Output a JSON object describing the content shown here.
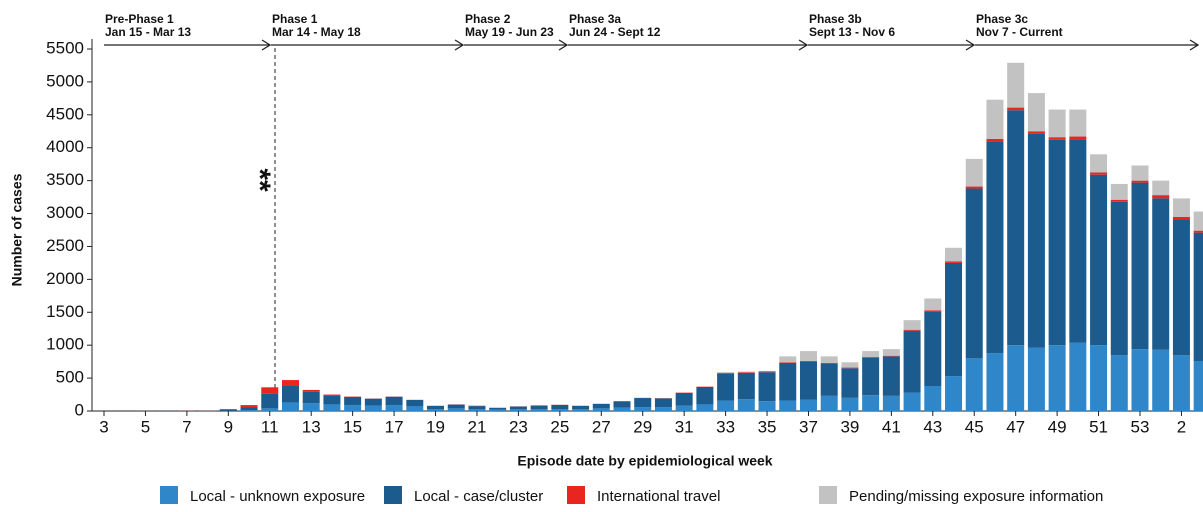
{
  "chart_data": {
    "type": "stacked-bar",
    "x_label": "Episode date by epidemiological week",
    "y_label": "Number of cases",
    "annotation": "**",
    "phases": [
      {
        "label": "Pre-Phase 1",
        "dates": "Jan 15 - Mar 13"
      },
      {
        "label": "Phase 1",
        "dates": "Mar 14 - May 18"
      },
      {
        "label": "Phase 2",
        "dates": "May 19 - Jun 23"
      },
      {
        "label": "Phase 3a",
        "dates": "Jun 24 - Sept 12"
      },
      {
        "label": "Phase 3b",
        "dates": "Sept 13 - Nov 6"
      },
      {
        "label": "Phase 3c",
        "dates": "Nov 7 - Current"
      }
    ],
    "categories": [
      "3",
      null,
      "5",
      null,
      "7",
      null,
      "9",
      null,
      "11",
      null,
      "13",
      null,
      "15",
      null,
      "17",
      null,
      "19",
      null,
      "21",
      null,
      "23",
      null,
      "25",
      null,
      "27",
      null,
      "29",
      null,
      "31",
      null,
      "33",
      null,
      "35",
      null,
      "37",
      null,
      "39",
      null,
      "41",
      null,
      "43",
      null,
      "45",
      null,
      "47",
      null,
      "49",
      null,
      "51",
      null,
      "53",
      null,
      "2",
      null
    ],
    "series": [
      {
        "name": "Local - unknown exposure",
        "color": "#2f87c9",
        "values": [
          0,
          0,
          0,
          0,
          0,
          0,
          5,
          10,
          40,
          130,
          120,
          100,
          90,
          80,
          90,
          70,
          30,
          40,
          30,
          20,
          30,
          30,
          30,
          30,
          40,
          50,
          60,
          60,
          80,
          100,
          160,
          180,
          150,
          160,
          170,
          230,
          200,
          240,
          230,
          280,
          380,
          530,
          800,
          880,
          1000,
          960,
          1000,
          1040,
          1000,
          850,
          940,
          930,
          850,
          760
        ]
      },
      {
        "name": "Local - case/cluster",
        "color": "#1b5b8e",
        "values": [
          0,
          0,
          2,
          2,
          2,
          3,
          15,
          50,
          220,
          250,
          170,
          140,
          125,
          108,
          128,
          98,
          48,
          58,
          45,
          28,
          38,
          53,
          63,
          48,
          68,
          97,
          137,
          132,
          195,
          265,
          405,
          400,
          440,
          570,
          580,
          490,
          450,
          570,
          600,
          940,
          1130,
          1720,
          2580,
          3220,
          3570,
          3250,
          3120,
          3090,
          2590,
          2330,
          2530,
          2300,
          2060,
          1950
        ]
      },
      {
        "name": "International travel",
        "color": "#e8261f",
        "values": [
          0,
          0,
          0,
          0,
          3,
          2,
          10,
          30,
          100,
          90,
          30,
          10,
          5,
          2,
          2,
          2,
          2,
          2,
          5,
          2,
          2,
          2,
          2,
          2,
          2,
          3,
          3,
          3,
          5,
          5,
          15,
          10,
          10,
          10,
          10,
          10,
          10,
          10,
          10,
          15,
          20,
          25,
          30,
          35,
          40,
          40,
          40,
          40,
          35,
          30,
          30,
          50,
          40,
          30
        ]
      },
      {
        "name": "Pending/missing exposure information",
        "color": "#c2c2c2",
        "values": [
          0,
          0,
          0,
          0,
          0,
          0,
          0,
          0,
          0,
          0,
          0,
          0,
          0,
          0,
          0,
          0,
          0,
          0,
          0,
          0,
          0,
          0,
          0,
          0,
          0,
          0,
          0,
          0,
          0,
          0,
          10,
          10,
          10,
          90,
          150,
          100,
          80,
          90,
          100,
          145,
          180,
          205,
          420,
          595,
          680,
          580,
          420,
          410,
          275,
          240,
          230,
          220,
          280,
          290
        ]
      }
    ],
    "ylim": [
      0,
      5500
    ],
    "yticks": [
      0,
      500,
      1000,
      1500,
      2000,
      2500,
      3000,
      3500,
      4000,
      4500,
      5000,
      5500
    ]
  }
}
